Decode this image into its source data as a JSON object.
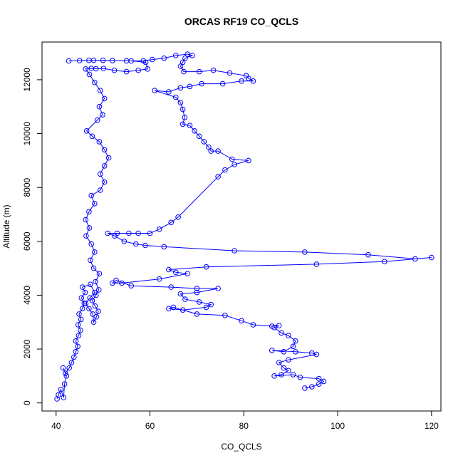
{
  "chart_data": {
    "type": "scatter",
    "title": "ORCAS RF19 CO_QCLS",
    "xlabel": "CO_QCLS",
    "ylabel": "Altitude (m)",
    "xlim": [
      37,
      122
    ],
    "ylim": [
      -300,
      13400
    ],
    "xticks": [
      40,
      60,
      80,
      100,
      120
    ],
    "yticks": [
      0,
      2000,
      4000,
      6000,
      8000,
      10000,
      12000
    ],
    "grid": false,
    "legend": "none",
    "series": [
      {
        "color": "#0000ff",
        "style": "line-with-open-circles",
        "points": [
          [
            40.2,
            150
          ],
          [
            40.5,
            300
          ],
          [
            41.0,
            500
          ],
          [
            41.6,
            200
          ],
          [
            41.8,
            700
          ],
          [
            42.2,
            1000
          ],
          [
            41.5,
            1300
          ],
          [
            42.0,
            1100
          ],
          [
            42.8,
            1300
          ],
          [
            43.3,
            1500
          ],
          [
            43.8,
            1700
          ],
          [
            44.2,
            1900
          ],
          [
            44.6,
            2100
          ],
          [
            44.2,
            2300
          ],
          [
            44.8,
            2500
          ],
          [
            45.2,
            2700
          ],
          [
            44.7,
            2900
          ],
          [
            45.3,
            3100
          ],
          [
            44.9,
            3300
          ],
          [
            45.6,
            3500
          ],
          [
            46.0,
            3700
          ],
          [
            45.4,
            3900
          ],
          [
            46.2,
            4100
          ],
          [
            45.6,
            4300
          ],
          [
            47.3,
            4400
          ],
          [
            48.2,
            4100
          ],
          [
            47.2,
            3900
          ],
          [
            46.3,
            3700
          ],
          [
            47.0,
            3500
          ],
          [
            47.8,
            3300
          ],
          [
            48.0,
            3000
          ],
          [
            48.6,
            3200
          ],
          [
            49.0,
            3400
          ],
          [
            48.3,
            3600
          ],
          [
            47.7,
            3800
          ],
          [
            48.5,
            4000
          ],
          [
            49.1,
            4200
          ],
          [
            48.4,
            4500
          ],
          [
            49.2,
            4800
          ],
          [
            48.0,
            5000
          ],
          [
            47.3,
            5300
          ],
          [
            48.2,
            5600
          ],
          [
            47.5,
            5900
          ],
          [
            46.4,
            6200
          ],
          [
            47.1,
            6500
          ],
          [
            46.3,
            6800
          ],
          [
            47.0,
            7100
          ],
          [
            48.2,
            7400
          ],
          [
            47.5,
            7700
          ],
          [
            49.4,
            7900
          ],
          [
            50.3,
            8200
          ],
          [
            49.4,
            8500
          ],
          [
            50.3,
            8800
          ],
          [
            51.2,
            9100
          ],
          [
            50.3,
            9400
          ],
          [
            49.2,
            9700
          ],
          [
            47.7,
            9900
          ],
          [
            46.5,
            10100
          ],
          [
            48.8,
            10500
          ],
          [
            49.9,
            10700
          ],
          [
            49.2,
            11000
          ],
          [
            50.3,
            11300
          ],
          [
            49.4,
            11600
          ],
          [
            48.2,
            11900
          ],
          [
            47.1,
            12200
          ],
          [
            46.3,
            12400
          ],
          [
            47.5,
            12420
          ],
          [
            48.5,
            12410
          ],
          [
            50.1,
            12420
          ],
          [
            52.4,
            12350
          ],
          [
            55.0,
            12300
          ],
          [
            57.5,
            12350
          ],
          [
            59.5,
            12400
          ],
          [
            59.1,
            12650
          ],
          [
            56.0,
            12700
          ],
          [
            52.0,
            12710
          ],
          [
            48.0,
            12720
          ],
          [
            45.0,
            12710
          ],
          [
            42.7,
            12700
          ],
          [
            47.0,
            12720
          ],
          [
            50.0,
            12720
          ],
          [
            55.0,
            12700
          ],
          [
            58.6,
            12700
          ],
          [
            60.5,
            12750
          ],
          [
            63.0,
            12800
          ],
          [
            65.5,
            12900
          ],
          [
            68.0,
            12950
          ],
          [
            69.0,
            12900
          ],
          [
            67.5,
            12800
          ],
          [
            67.0,
            12650
          ],
          [
            66.5,
            12500
          ],
          [
            67.2,
            12300
          ],
          [
            70.5,
            12300
          ],
          [
            73.5,
            12350
          ],
          [
            77.0,
            12250
          ],
          [
            80.5,
            12150
          ],
          [
            81.0,
            12050
          ],
          [
            82.0,
            11950
          ],
          [
            79.5,
            11950
          ],
          [
            75.5,
            11850
          ],
          [
            71.0,
            11850
          ],
          [
            68.5,
            11750
          ],
          [
            66.5,
            11700
          ],
          [
            64.0,
            11550
          ],
          [
            61.0,
            11600
          ],
          [
            65.5,
            11350
          ],
          [
            66.5,
            11150
          ],
          [
            67.0,
            10900
          ],
          [
            67.4,
            10600
          ],
          [
            67.0,
            10350
          ],
          [
            68.5,
            10300
          ],
          [
            69.5,
            10100
          ],
          [
            70.5,
            9900
          ],
          [
            71.5,
            9700
          ],
          [
            72.5,
            9500
          ],
          [
            73.0,
            9350
          ],
          [
            74.5,
            9350
          ],
          [
            77.5,
            9050
          ],
          [
            81.0,
            9000
          ],
          [
            78.0,
            8850
          ],
          [
            76.0,
            8650
          ],
          [
            74.5,
            8400
          ],
          [
            66.0,
            6900
          ],
          [
            64.5,
            6700
          ],
          [
            62.0,
            6450
          ],
          [
            60.0,
            6300
          ],
          [
            57.5,
            6300
          ],
          [
            55.5,
            6300
          ],
          [
            53.0,
            6300
          ],
          [
            51.0,
            6300
          ],
          [
            52.5,
            6200
          ],
          [
            54.5,
            6000
          ],
          [
            57.0,
            5900
          ],
          [
            59.0,
            5850
          ],
          [
            63.0,
            5800
          ],
          [
            78.0,
            5650
          ],
          [
            93.0,
            5600
          ],
          [
            106.5,
            5500
          ],
          [
            116.5,
            5350
          ],
          [
            120.0,
            5400
          ],
          [
            110.0,
            5250
          ],
          [
            95.5,
            5150
          ],
          [
            72.0,
            5050
          ],
          [
            64.0,
            4950
          ],
          [
            65.5,
            4850
          ],
          [
            68.0,
            4800
          ],
          [
            62.0,
            4600
          ],
          [
            54.0,
            4450
          ],
          [
            52.0,
            4450
          ],
          [
            52.8,
            4550
          ],
          [
            56.0,
            4350
          ],
          [
            64.5,
            4300
          ],
          [
            70.0,
            4250
          ],
          [
            74.5,
            4250
          ],
          [
            70.0,
            4100
          ],
          [
            66.5,
            4050
          ],
          [
            67.5,
            3850
          ],
          [
            70.5,
            3750
          ],
          [
            73.0,
            3650
          ],
          [
            72.0,
            3550
          ],
          [
            67.0,
            3450
          ],
          [
            64.0,
            3500
          ],
          [
            65.0,
            3550
          ],
          [
            70.0,
            3300
          ],
          [
            76.0,
            3250
          ],
          [
            79.5,
            3050
          ],
          [
            82.0,
            2900
          ],
          [
            86.0,
            2850
          ],
          [
            87.5,
            2870
          ],
          [
            86.5,
            2800
          ],
          [
            88.0,
            2600
          ],
          [
            89.5,
            2500
          ],
          [
            91.0,
            2300
          ],
          [
            90.5,
            2100
          ],
          [
            88.5,
            1900
          ],
          [
            86.0,
            1950
          ],
          [
            91.0,
            1900
          ],
          [
            94.5,
            1850
          ],
          [
            95.5,
            1800
          ],
          [
            89.5,
            1600
          ],
          [
            87.5,
            1500
          ],
          [
            88.5,
            1300
          ],
          [
            89.5,
            1200
          ],
          [
            88.0,
            1050
          ],
          [
            86.5,
            1000
          ],
          [
            90.5,
            1050
          ],
          [
            92.0,
            950
          ],
          [
            96.0,
            900
          ],
          [
            97.0,
            800
          ],
          [
            96.0,
            700
          ],
          [
            94.5,
            600
          ],
          [
            93.0,
            550
          ]
        ]
      }
    ]
  }
}
